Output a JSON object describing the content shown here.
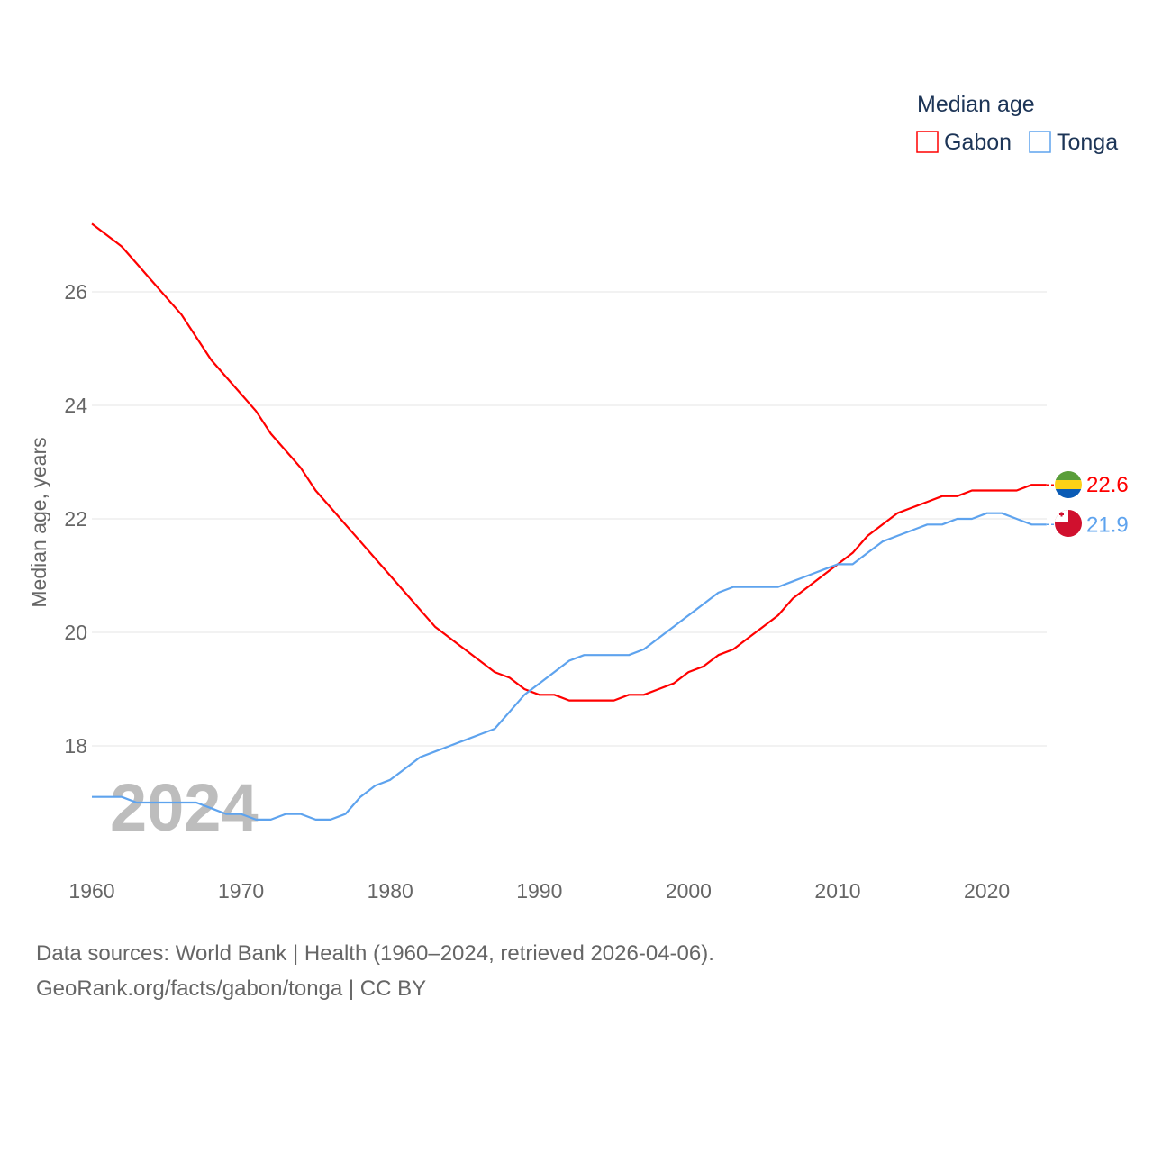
{
  "chart_data": {
    "type": "line",
    "title": "",
    "ylabel": "Median age, years",
    "xlabel": "",
    "xlim": [
      1960,
      2024
    ],
    "ylim": [
      16.0,
      27.5
    ],
    "x_ticks": [
      "1960",
      "1970",
      "1980",
      "1990",
      "2000",
      "2010",
      "2020"
    ],
    "y_ticks": [
      "18",
      "20",
      "22",
      "24",
      "26"
    ],
    "grid": true,
    "legend": {
      "title": "Median age",
      "placement": "top-right"
    },
    "year_watermark": "2024",
    "x": [
      1960,
      1961,
      1962,
      1963,
      1964,
      1965,
      1966,
      1967,
      1968,
      1969,
      1970,
      1971,
      1972,
      1973,
      1974,
      1975,
      1976,
      1977,
      1978,
      1979,
      1980,
      1981,
      1982,
      1983,
      1984,
      1985,
      1986,
      1987,
      1988,
      1989,
      1990,
      1991,
      1992,
      1993,
      1994,
      1995,
      1996,
      1997,
      1998,
      1999,
      2000,
      2001,
      2002,
      2003,
      2004,
      2005,
      2006,
      2007,
      2008,
      2009,
      2010,
      2011,
      2012,
      2013,
      2014,
      2015,
      2016,
      2017,
      2018,
      2019,
      2020,
      2021,
      2022,
      2023,
      2024
    ],
    "series": [
      {
        "name": "Gabon",
        "color": "#ff0000",
        "end_label": "22.6",
        "values": [
          27.2,
          27.0,
          26.8,
          26.5,
          26.2,
          25.9,
          25.6,
          25.2,
          24.8,
          24.5,
          24.2,
          23.9,
          23.5,
          23.2,
          22.9,
          22.5,
          22.2,
          21.9,
          21.6,
          21.3,
          21.0,
          20.7,
          20.4,
          20.1,
          19.9,
          19.7,
          19.5,
          19.3,
          19.2,
          19.0,
          18.9,
          18.9,
          18.8,
          18.8,
          18.8,
          18.8,
          18.9,
          18.9,
          19.0,
          19.1,
          19.3,
          19.4,
          19.6,
          19.7,
          19.9,
          20.1,
          20.3,
          20.6,
          20.8,
          21.0,
          21.2,
          21.4,
          21.7,
          21.9,
          22.1,
          22.2,
          22.3,
          22.4,
          22.4,
          22.5,
          22.5,
          22.5,
          22.5,
          22.6,
          22.6
        ]
      },
      {
        "name": "Tonga",
        "color": "#5ea3ee",
        "end_label": "21.9",
        "values": [
          17.1,
          17.1,
          17.1,
          17.0,
          17.0,
          17.0,
          17.0,
          17.0,
          16.9,
          16.8,
          16.8,
          16.7,
          16.7,
          16.8,
          16.8,
          16.7,
          16.7,
          16.8,
          17.1,
          17.3,
          17.4,
          17.6,
          17.8,
          17.9,
          18.0,
          18.1,
          18.2,
          18.3,
          18.6,
          18.9,
          19.1,
          19.3,
          19.5,
          19.6,
          19.6,
          19.6,
          19.6,
          19.7,
          19.9,
          20.1,
          20.3,
          20.5,
          20.7,
          20.8,
          20.8,
          20.8,
          20.8,
          20.9,
          21.0,
          21.1,
          21.2,
          21.2,
          21.4,
          21.6,
          21.7,
          21.8,
          21.9,
          21.9,
          22.0,
          22.0,
          22.1,
          22.1,
          22.0,
          21.9,
          21.9
        ]
      }
    ]
  },
  "footer": {
    "source_line": "Data sources: World Bank | Health (1960–2024, retrieved 2026-04-06).",
    "attribution": "GeoRank.org/facts/gabon/tonga | CC BY"
  }
}
